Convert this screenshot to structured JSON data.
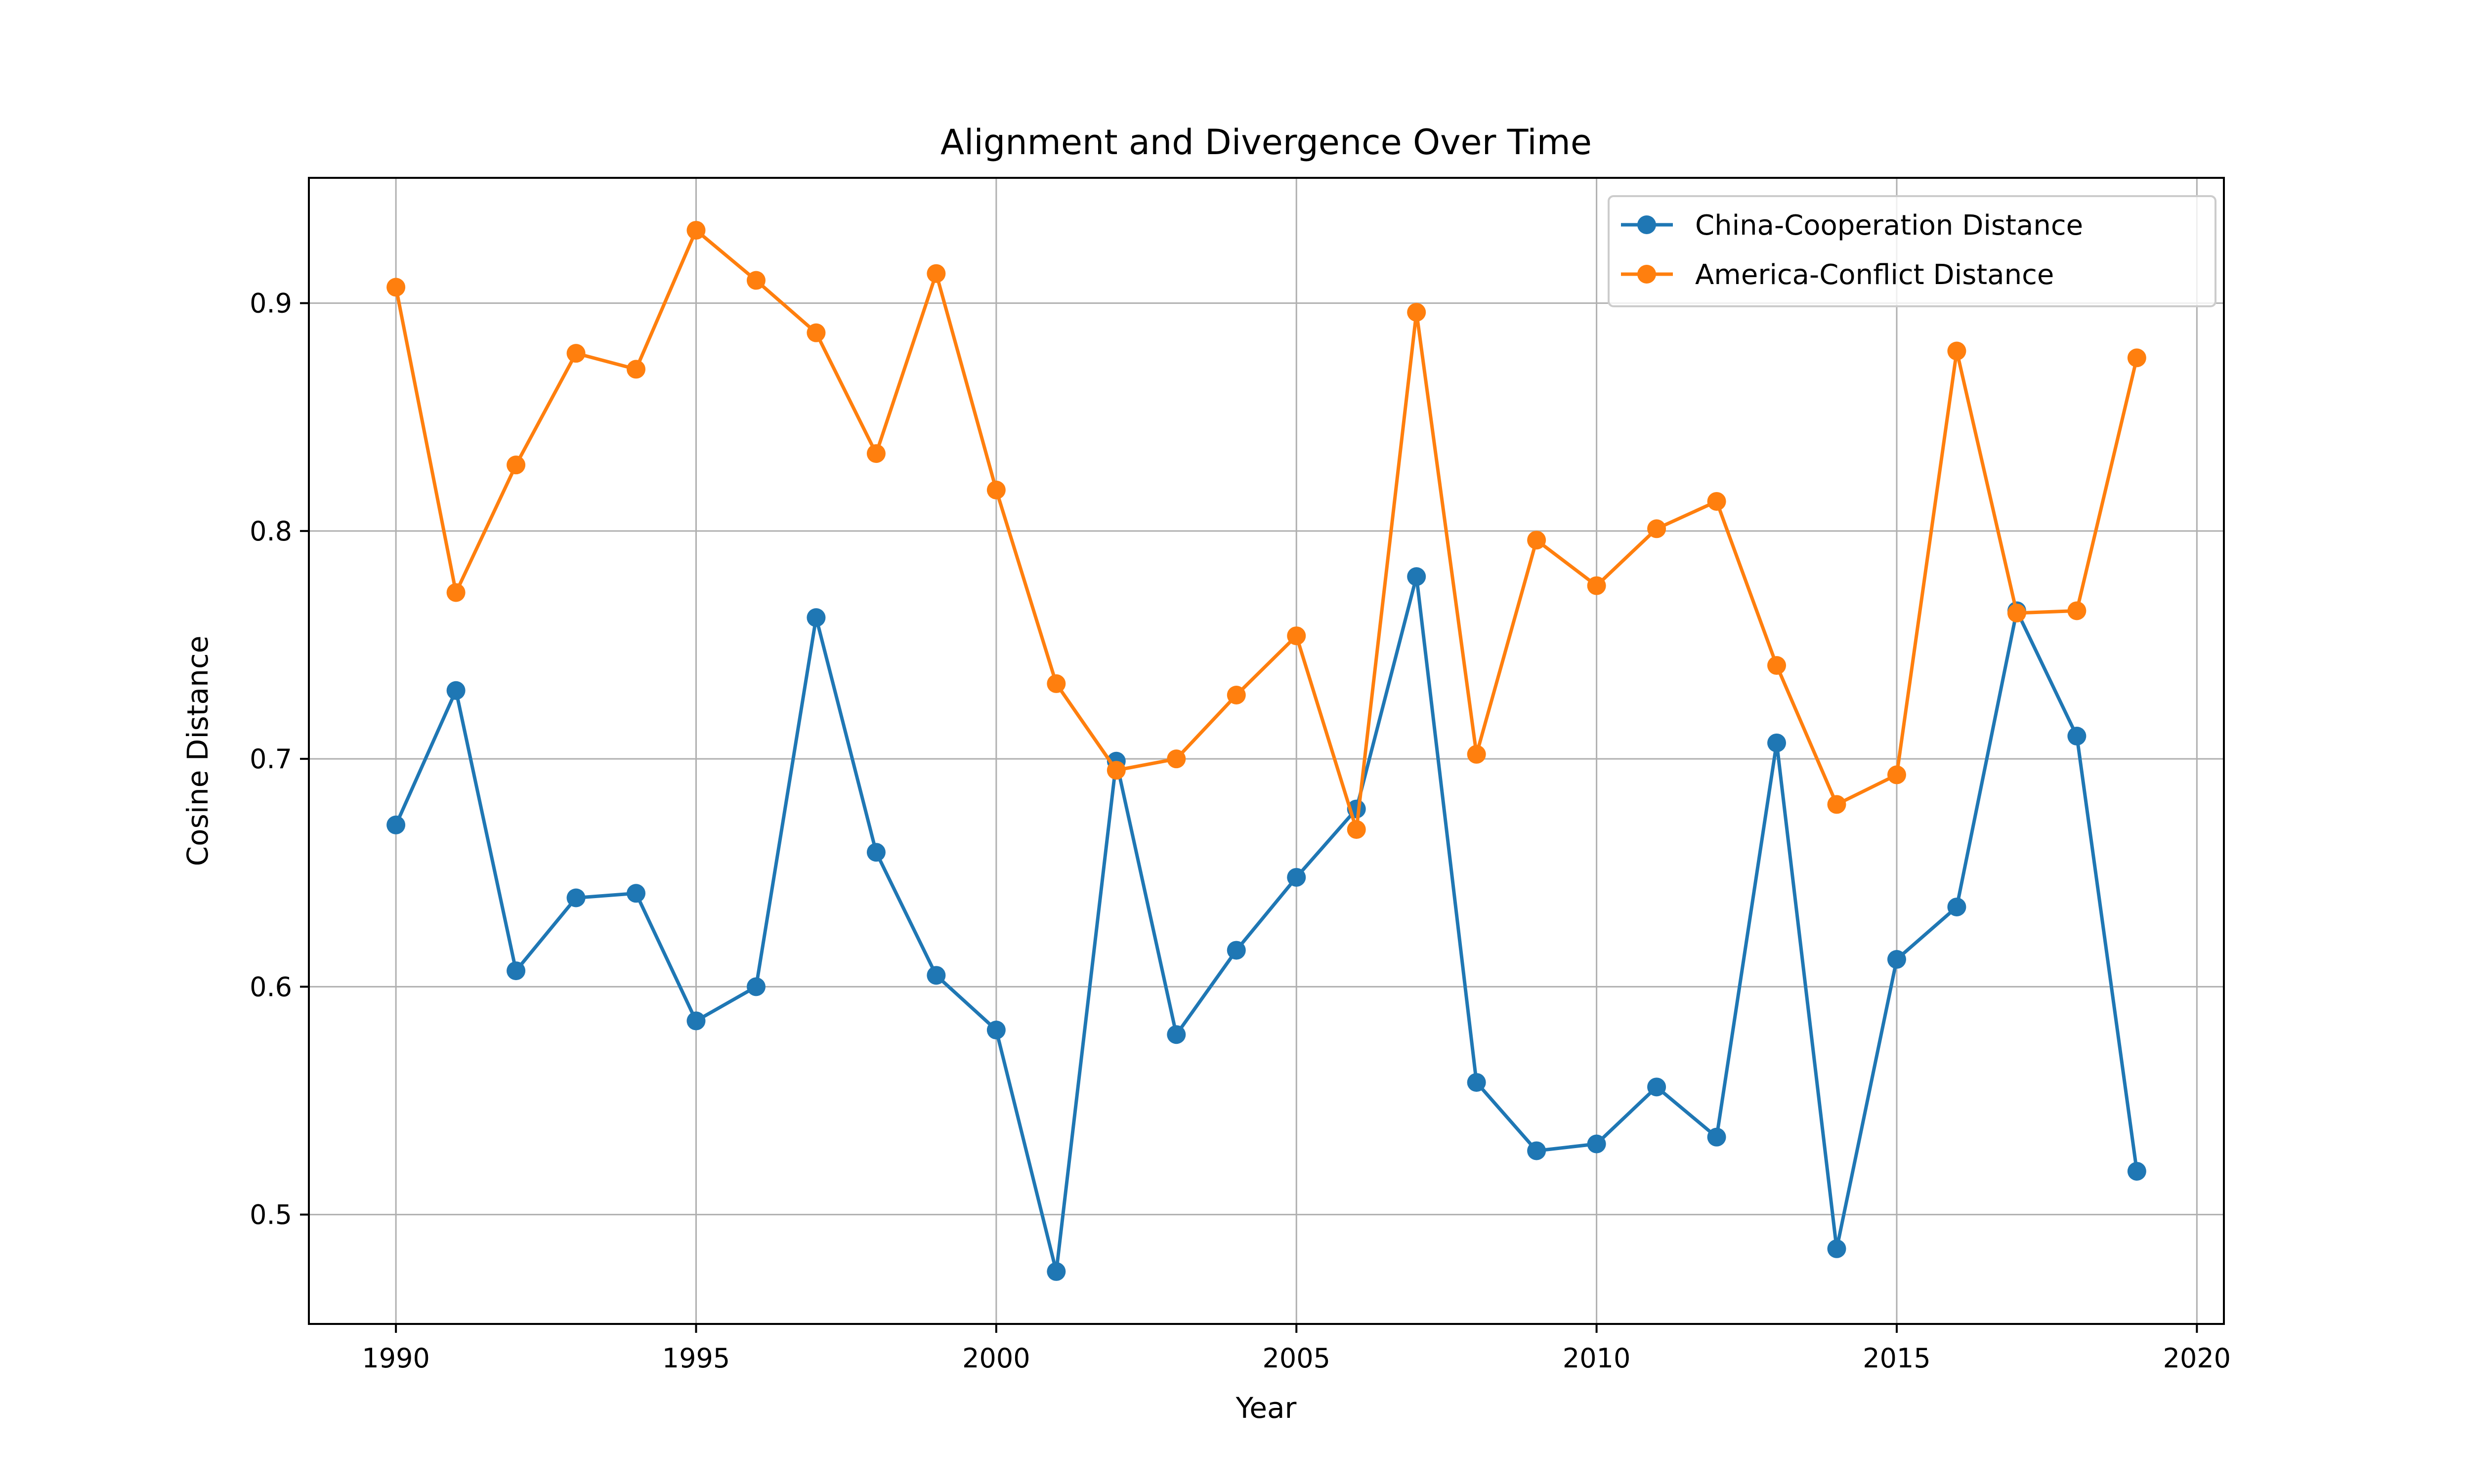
{
  "chart_data": {
    "type": "line",
    "title": "Alignment and Divergence Over Time",
    "xlabel": "Year",
    "ylabel": "Cosine Distance",
    "xlim": [
      1988.55,
      2020.45
    ],
    "ylim": [
      0.452,
      0.955
    ],
    "x_ticks": [
      1990,
      1995,
      2000,
      2005,
      2010,
      2015,
      2020
    ],
    "y_ticks": [
      0.5,
      0.6,
      0.7,
      0.8,
      0.9
    ],
    "grid": true,
    "legend_position": "top-right",
    "x": [
      1990,
      1991,
      1992,
      1993,
      1994,
      1995,
      1996,
      1997,
      1998,
      1999,
      2000,
      2001,
      2002,
      2003,
      2004,
      2005,
      2006,
      2007,
      2008,
      2009,
      2010,
      2011,
      2012,
      2013,
      2014,
      2015,
      2016,
      2017,
      2018,
      2019
    ],
    "series": [
      {
        "name": "China-Cooperation Distance",
        "color": "#1f77b4",
        "values": [
          0.671,
          0.73,
          0.607,
          0.639,
          0.641,
          0.585,
          0.6,
          0.762,
          0.659,
          0.605,
          0.581,
          0.475,
          0.699,
          0.579,
          0.616,
          0.648,
          0.678,
          0.78,
          0.558,
          0.528,
          0.531,
          0.556,
          0.534,
          0.707,
          0.485,
          0.612,
          0.635,
          0.765,
          0.71,
          0.519
        ]
      },
      {
        "name": "America-Conflict Distance",
        "color": "#ff7f0e",
        "values": [
          0.907,
          0.773,
          0.829,
          0.878,
          0.871,
          0.932,
          0.91,
          0.887,
          0.834,
          0.913,
          0.818,
          0.733,
          0.695,
          0.7,
          0.728,
          0.754,
          0.669,
          0.896,
          0.702,
          0.796,
          0.776,
          0.801,
          0.813,
          0.741,
          0.68,
          0.693,
          0.879,
          0.764,
          0.765,
          0.876
        ]
      }
    ]
  }
}
